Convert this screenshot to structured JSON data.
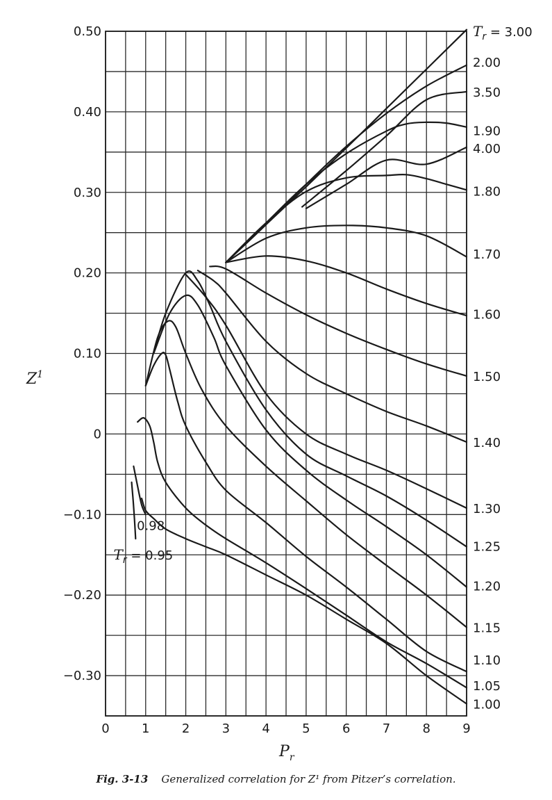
{
  "chart_data": {
    "type": "line",
    "title": "",
    "xlabel": "P",
    "xlabel_sub": "r",
    "ylabel": "Z",
    "ylabel_sup": "1",
    "xlim": [
      0,
      9
    ],
    "ylim": [
      -0.35,
      0.5
    ],
    "x_ticks": [
      0,
      1,
      2,
      3,
      4,
      5,
      6,
      7,
      8,
      9
    ],
    "x_tick_labels": [
      "0",
      "1",
      "2",
      "3",
      "4",
      "5",
      "6",
      "7",
      "8",
      "9"
    ],
    "y_ticks": [
      0.5,
      0.4,
      0.3,
      0.2,
      0.1,
      0,
      -0.1,
      -0.2,
      -0.3
    ],
    "y_tick_labels": [
      "0.50",
      "0.40",
      "0.30",
      "0.20",
      "0.10",
      "0",
      "−0.10",
      "−0.20",
      "−0.30"
    ],
    "grid": true,
    "grid_step": {
      "x": 0.5,
      "y": 0.05
    },
    "series": [
      {
        "name": "3.00",
        "x": [
          3.0,
          4.0,
          5.0,
          6.0,
          7.0,
          8.0,
          9.0
        ],
        "y": [
          0.213,
          0.26,
          0.307,
          0.355,
          0.404,
          0.453,
          0.502
        ]
      },
      {
        "name": "2.00",
        "x": [
          3.0,
          4.0,
          5.0,
          6.0,
          7.0,
          8.0,
          9.0
        ],
        "y": [
          0.213,
          0.26,
          0.31,
          0.357,
          0.398,
          0.432,
          0.458
        ]
      },
      {
        "name": "3.50",
        "x": [
          4.9,
          6.0,
          7.0,
          8.0,
          9.0
        ],
        "y": [
          0.282,
          0.327,
          0.37,
          0.415,
          0.425
        ]
      },
      {
        "name": "1.90",
        "x": [
          3.0,
          4.0,
          5.0,
          6.0,
          7.0,
          7.5,
          8.0,
          8.5,
          9.0
        ],
        "y": [
          0.213,
          0.262,
          0.31,
          0.348,
          0.376,
          0.385,
          0.387,
          0.386,
          0.381
        ]
      },
      {
        "name": "4.00",
        "x": [
          5.0,
          6.0,
          7.0,
          8.0,
          9.0
        ],
        "y": [
          0.28,
          0.31,
          0.34,
          0.335,
          0.356
        ]
      },
      {
        "name": "1.80",
        "x": [
          3.0,
          4.0,
          5.0,
          6.0,
          7.0,
          7.5,
          8.0,
          8.5,
          9.0
        ],
        "y": [
          0.213,
          0.262,
          0.301,
          0.318,
          0.321,
          0.322,
          0.317,
          0.31,
          0.303
        ]
      },
      {
        "name": "1.70",
        "x": [
          3.0,
          4.0,
          5.0,
          6.0,
          7.0,
          8.0,
          9.0
        ],
        "y": [
          0.213,
          0.243,
          0.256,
          0.259,
          0.256,
          0.246,
          0.22
        ]
      },
      {
        "name": "1.60",
        "x": [
          3.0,
          4.0,
          5.0,
          6.0,
          7.0,
          8.0,
          9.0
        ],
        "y": [
          0.213,
          0.221,
          0.215,
          0.2,
          0.18,
          0.162,
          0.147
        ]
      },
      {
        "name": "1.50",
        "x": [
          2.6,
          3.0,
          4.0,
          5.0,
          6.0,
          7.0,
          8.0,
          9.0
        ],
        "y": [
          0.208,
          0.205,
          0.175,
          0.148,
          0.125,
          0.105,
          0.087,
          0.072
        ]
      },
      {
        "name": "1.40",
        "x": [
          2.3,
          2.7,
          3.0,
          4.0,
          5.0,
          6.0,
          7.0,
          8.0,
          9.0
        ],
        "y": [
          0.203,
          0.19,
          0.175,
          0.115,
          0.075,
          0.05,
          0.028,
          0.01,
          -0.01
        ]
      },
      {
        "name": "1.30",
        "x": [
          2.0,
          2.5,
          3.0,
          4.0,
          5.0,
          6.0,
          7.0,
          8.0,
          9.0
        ],
        "y": [
          0.198,
          0.17,
          0.135,
          0.05,
          0.0,
          -0.025,
          -0.045,
          -0.068,
          -0.092
        ]
      },
      {
        "name": "1.25",
        "x": [
          1.2,
          1.5,
          2.0,
          2.3,
          2.6,
          3.0,
          4.0,
          5.0,
          6.0,
          7.0,
          8.0,
          9.0
        ],
        "y": [
          0.1,
          0.15,
          0.2,
          0.19,
          0.16,
          0.115,
          0.03,
          -0.025,
          -0.052,
          -0.077,
          -0.107,
          -0.14
        ]
      },
      {
        "name": "1.20",
        "x": [
          1.2,
          1.6,
          2.0,
          2.3,
          2.7,
          3.0,
          4.0,
          5.0,
          6.0,
          7.0,
          8.0,
          9.0
        ],
        "y": [
          0.1,
          0.15,
          0.172,
          0.16,
          0.12,
          0.085,
          0.005,
          -0.045,
          -0.082,
          -0.115,
          -0.15,
          -0.19
        ]
      },
      {
        "name": "1.15",
        "x": [
          1.0,
          1.3,
          1.55,
          1.75,
          2.0,
          2.4,
          3.0,
          4.0,
          5.0,
          6.0,
          7.0,
          8.0,
          9.0
        ],
        "y": [
          0.06,
          0.12,
          0.14,
          0.133,
          0.1,
          0.055,
          0.01,
          -0.04,
          -0.083,
          -0.125,
          -0.163,
          -0.2,
          -0.24
        ]
      },
      {
        "name": "1.10",
        "x": [
          1.0,
          1.2,
          1.4,
          1.5,
          1.6,
          1.8,
          2.0,
          2.5,
          3.0,
          4.0,
          5.0,
          6.0,
          7.0,
          8.0,
          9.0
        ],
        "y": [
          0.06,
          0.085,
          0.1,
          0.098,
          0.08,
          0.04,
          0.01,
          -0.035,
          -0.07,
          -0.11,
          -0.152,
          -0.19,
          -0.23,
          -0.27,
          -0.295
        ]
      },
      {
        "name": "1.05",
        "x": [
          0.8,
          0.95,
          1.1,
          1.2,
          1.3,
          1.5,
          2.0,
          2.5,
          3.0,
          4.0,
          5.0,
          6.0,
          7.0,
          8.0,
          9.0
        ],
        "y": [
          0.015,
          0.02,
          0.01,
          -0.01,
          -0.035,
          -0.06,
          -0.092,
          -0.113,
          -0.13,
          -0.16,
          -0.192,
          -0.225,
          -0.258,
          -0.285,
          -0.315
        ]
      },
      {
        "name": "1.00",
        "x": [
          0.9,
          1.0,
          1.2,
          1.5,
          2.0,
          2.5,
          3.0,
          4.0,
          5.0,
          6.0,
          7.0,
          8.0,
          9.0
        ],
        "y": [
          -0.08,
          -0.095,
          -0.105,
          -0.118,
          -0.13,
          -0.14,
          -0.15,
          -0.175,
          -0.2,
          -0.23,
          -0.26,
          -0.3,
          -0.335
        ]
      },
      {
        "name": "0.98",
        "x": [
          0.7,
          0.8,
          0.9,
          1.0
        ],
        "y": [
          -0.04,
          -0.065,
          -0.088,
          -0.1
        ]
      },
      {
        "name": "0.95",
        "x": [
          0.65,
          0.7,
          0.75
        ],
        "y": [
          -0.06,
          -0.09,
          -0.13
        ]
      }
    ],
    "right_labels": [
      {
        "text": "= 3.00",
        "prefix": "T",
        "prefix_sub": "r",
        "y": 0.5
      },
      {
        "text": "2.00",
        "y": 0.462
      },
      {
        "text": "3.50",
        "y": 0.425
      },
      {
        "text": "1.90",
        "y": 0.377
      },
      {
        "text": "4.00",
        "y": 0.355
      },
      {
        "text": "1.80",
        "y": 0.302
      },
      {
        "text": "1.70",
        "y": 0.224
      },
      {
        "text": "1.60",
        "y": 0.149
      },
      {
        "text": "1.50",
        "y": 0.072
      },
      {
        "text": "1.40",
        "y": -0.01
      },
      {
        "text": "1.30",
        "y": -0.092
      },
      {
        "text": "1.25",
        "y": -0.139
      },
      {
        "text": "1.20",
        "y": -0.188
      },
      {
        "text": "1.15",
        "y": -0.24
      },
      {
        "text": "1.10",
        "y": -0.28
      },
      {
        "text": "1.05",
        "y": -0.312
      },
      {
        "text": "1.00",
        "y": -0.335
      }
    ],
    "inner_labels": [
      {
        "text": "0.98",
        "x": 0.78,
        "y": -0.113
      },
      {
        "text": "= 0.95",
        "prefix": "T",
        "prefix_sub": "r",
        "x": 0.2,
        "y": -0.15
      }
    ]
  },
  "caption": {
    "label": "Fig. 3-13",
    "text": "Generalized correlation for Z¹ from Pitzer’s correlation."
  }
}
